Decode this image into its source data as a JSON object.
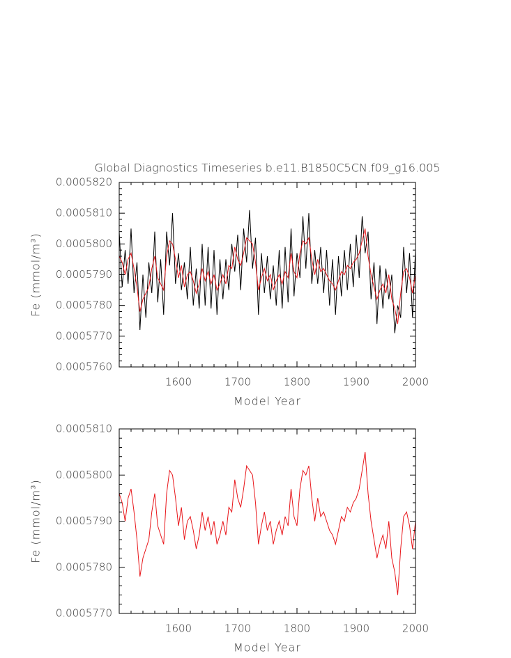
{
  "chart_data": [
    {
      "type": "line",
      "title": "Global Diagnostics Timeseries b.e11.B1850C5CN.f09_g16.005",
      "xlabel": "Model Year",
      "ylabel": "Fe (mmol/m³)",
      "x": [
        1500,
        1505,
        1510,
        1515,
        1520,
        1525,
        1530,
        1535,
        1540,
        1545,
        1550,
        1555,
        1560,
        1565,
        1570,
        1575,
        1580,
        1585,
        1590,
        1595,
        1600,
        1605,
        1610,
        1615,
        1620,
        1625,
        1630,
        1635,
        1640,
        1645,
        1650,
        1655,
        1660,
        1665,
        1670,
        1675,
        1680,
        1685,
        1690,
        1695,
        1700,
        1705,
        1710,
        1715,
        1720,
        1725,
        1730,
        1735,
        1740,
        1745,
        1750,
        1755,
        1760,
        1765,
        1770,
        1775,
        1780,
        1785,
        1790,
        1795,
        1800,
        1805,
        1810,
        1815,
        1820,
        1825,
        1830,
        1835,
        1840,
        1845,
        1850,
        1855,
        1860,
        1865,
        1870,
        1875,
        1880,
        1885,
        1890,
        1895,
        1900,
        1905,
        1910,
        1915,
        1920,
        1925,
        1930,
        1935,
        1940,
        1945,
        1950,
        1955,
        1960,
        1965,
        1970,
        1975,
        1980,
        1985,
        1990,
        1995,
        2000
      ],
      "series": [
        {
          "color": "#000000",
          "values": [
            0.0005804,
            0.0005786,
            0.0005798,
            0.0005787,
            0.0005805,
            0.0005784,
            0.0005794,
            0.0005772,
            0.000579,
            0.0005776,
            0.0005794,
            0.0005784,
            0.0005804,
            0.0005781,
            0.0005795,
            0.0005777,
            0.0005804,
            0.0005793,
            0.000581,
            0.0005787,
            0.0005797,
            0.0005785,
            0.0005794,
            0.0005782,
            0.0005799,
            0.000578,
            0.0005792,
            0.0005779,
            0.00058,
            0.000578,
            0.0005799,
            0.0005779,
            0.0005798,
            0.0005777,
            0.0005795,
            0.0005782,
            0.0005795,
            0.0005785,
            0.00058,
            0.0005791,
            0.0005803,
            0.0005785,
            0.0005805,
            0.0005794,
            0.0005811,
            0.0005792,
            0.0005802,
            0.0005777,
            0.0005797,
            0.0005784,
            0.0005796,
            0.0005782,
            0.0005793,
            0.000578,
            0.0005798,
            0.0005779,
            0.0005799,
            0.0005781,
            0.0005805,
            0.0005783,
            0.0005797,
            0.0005789,
            0.0005809,
            0.0005792,
            0.000581,
            0.0005787,
            0.0005798,
            0.0005787,
            0.0005799,
            0.0005784,
            0.0005798,
            0.000578,
            0.0005795,
            0.0005777,
            0.0005796,
            0.0005783,
            0.0005798,
            0.0005785,
            0.00058,
            0.0005786,
            0.0005803,
            0.0005789,
            0.0005809,
            0.0005797,
            0.0005804,
            0.0005782,
            0.0005794,
            0.0005774,
            0.0005793,
            0.0005779,
            0.0005792,
            0.0005782,
            0.000579,
            0.0005771,
            0.000578,
            0.0005776,
            0.0005799,
            0.0005784,
            0.0005797,
            0.0005776,
            0.0005798
          ]
        },
        {
          "color": "#e8161a",
          "values": [
            0.0005796,
            0.0005794,
            0.000579,
            0.0005795,
            0.0005797,
            0.0005792,
            0.0005786,
            0.0005778,
            0.0005782,
            0.0005784,
            0.0005786,
            0.0005792,
            0.0005796,
            0.0005789,
            0.0005787,
            0.0005785,
            0.0005796,
            0.0005801,
            0.00058,
            0.0005795,
            0.0005789,
            0.0005793,
            0.0005786,
            0.000579,
            0.0005791,
            0.0005788,
            0.0005784,
            0.0005787,
            0.0005792,
            0.0005788,
            0.0005791,
            0.0005787,
            0.000579,
            0.0005785,
            0.0005787,
            0.000579,
            0.0005787,
            0.0005793,
            0.0005792,
            0.0005799,
            0.0005795,
            0.0005793,
            0.0005797,
            0.0005802,
            0.0005801,
            0.00058,
            0.0005794,
            0.0005785,
            0.0005789,
            0.0005792,
            0.0005788,
            0.000579,
            0.0005785,
            0.0005788,
            0.000579,
            0.0005787,
            0.0005791,
            0.0005789,
            0.0005797,
            0.0005791,
            0.0005789,
            0.0005797,
            0.0005801,
            0.00058,
            0.0005802,
            0.0005795,
            0.000579,
            0.0005795,
            0.0005791,
            0.0005792,
            0.000579,
            0.0005788,
            0.0005787,
            0.0005785,
            0.0005788,
            0.0005791,
            0.000579,
            0.0005793,
            0.0005792,
            0.0005794,
            0.0005795,
            0.0005797,
            0.0005801,
            0.0005805,
            0.0005796,
            0.000579,
            0.0005786,
            0.0005782,
            0.0005785,
            0.0005787,
            0.0005784,
            0.000579,
            0.0005782,
            0.0005779,
            0.0005774,
            0.0005784,
            0.0005791,
            0.0005792,
            0.0005789,
            0.0005784,
            0.000579
          ]
        }
      ],
      "xlim": [
        1500,
        2000
      ],
      "xticks": [
        1600,
        1700,
        1800,
        1900,
        2000
      ],
      "ylim": [
        0.000576,
        0.000582
      ],
      "yticks": [
        {
          "value": 0.000576,
          "label": "0.0005760"
        },
        {
          "value": 0.000577,
          "label": "0.0005770"
        },
        {
          "value": 0.000578,
          "label": "0.0005780"
        },
        {
          "value": 0.000579,
          "label": "0.0005790"
        },
        {
          "value": 0.00058,
          "label": "0.0005800"
        },
        {
          "value": 0.000581,
          "label": "0.0005810"
        },
        {
          "value": 0.000582,
          "label": "0.0005820"
        }
      ]
    },
    {
      "type": "line",
      "xlabel": "Model Year",
      "ylabel": "Fe (mmol/m³)",
      "x": [
        1500,
        1505,
        1510,
        1515,
        1520,
        1525,
        1530,
        1535,
        1540,
        1545,
        1550,
        1555,
        1560,
        1565,
        1570,
        1575,
        1580,
        1585,
        1590,
        1595,
        1600,
        1605,
        1610,
        1615,
        1620,
        1625,
        1630,
        1635,
        1640,
        1645,
        1650,
        1655,
        1660,
        1665,
        1670,
        1675,
        1680,
        1685,
        1690,
        1695,
        1700,
        1705,
        1710,
        1715,
        1720,
        1725,
        1730,
        1735,
        1740,
        1745,
        1750,
        1755,
        1760,
        1765,
        1770,
        1775,
        1780,
        1785,
        1790,
        1795,
        1800,
        1805,
        1810,
        1815,
        1820,
        1825,
        1830,
        1835,
        1840,
        1845,
        1850,
        1855,
        1860,
        1865,
        1870,
        1875,
        1880,
        1885,
        1890,
        1895,
        1900,
        1905,
        1910,
        1915,
        1920,
        1925,
        1930,
        1935,
        1940,
        1945,
        1950,
        1955,
        1960,
        1965,
        1970,
        1975,
        1980,
        1985,
        1990,
        1995,
        2000
      ],
      "series": [
        {
          "color": "#e8161a",
          "values": [
            0.0005796,
            0.0005794,
            0.000579,
            0.0005795,
            0.0005797,
            0.0005792,
            0.0005786,
            0.0005778,
            0.0005782,
            0.0005784,
            0.0005786,
            0.0005792,
            0.0005796,
            0.0005789,
            0.0005787,
            0.0005785,
            0.0005796,
            0.0005801,
            0.00058,
            0.0005795,
            0.0005789,
            0.0005793,
            0.0005786,
            0.000579,
            0.0005791,
            0.0005788,
            0.0005784,
            0.0005787,
            0.0005792,
            0.0005788,
            0.0005791,
            0.0005787,
            0.000579,
            0.0005785,
            0.0005787,
            0.000579,
            0.0005787,
            0.0005793,
            0.0005792,
            0.0005799,
            0.0005795,
            0.0005793,
            0.0005797,
            0.0005802,
            0.0005801,
            0.00058,
            0.0005794,
            0.0005785,
            0.0005789,
            0.0005792,
            0.0005788,
            0.000579,
            0.0005785,
            0.0005788,
            0.000579,
            0.0005787,
            0.0005791,
            0.0005789,
            0.0005797,
            0.0005791,
            0.0005789,
            0.0005797,
            0.0005801,
            0.00058,
            0.0005802,
            0.0005795,
            0.000579,
            0.0005795,
            0.0005791,
            0.0005792,
            0.000579,
            0.0005788,
            0.0005787,
            0.0005785,
            0.0005788,
            0.0005791,
            0.000579,
            0.0005793,
            0.0005792,
            0.0005794,
            0.0005795,
            0.0005797,
            0.0005801,
            0.0005805,
            0.0005796,
            0.000579,
            0.0005786,
            0.0005782,
            0.0005785,
            0.0005787,
            0.0005784,
            0.000579,
            0.0005782,
            0.0005779,
            0.0005774,
            0.0005784,
            0.0005791,
            0.0005792,
            0.0005789,
            0.0005784,
            0.000579
          ]
        }
      ],
      "xlim": [
        1500,
        2000
      ],
      "xticks": [
        1600,
        1700,
        1800,
        1900,
        2000
      ],
      "ylim": [
        0.000577,
        0.000581
      ],
      "yticks": [
        {
          "value": 0.000577,
          "label": "0.0005770"
        },
        {
          "value": 0.000578,
          "label": "0.0005780"
        },
        {
          "value": 0.000579,
          "label": "0.0005790"
        },
        {
          "value": 0.00058,
          "label": "0.0005800"
        },
        {
          "value": 0.000581,
          "label": "0.0005810"
        }
      ]
    }
  ]
}
